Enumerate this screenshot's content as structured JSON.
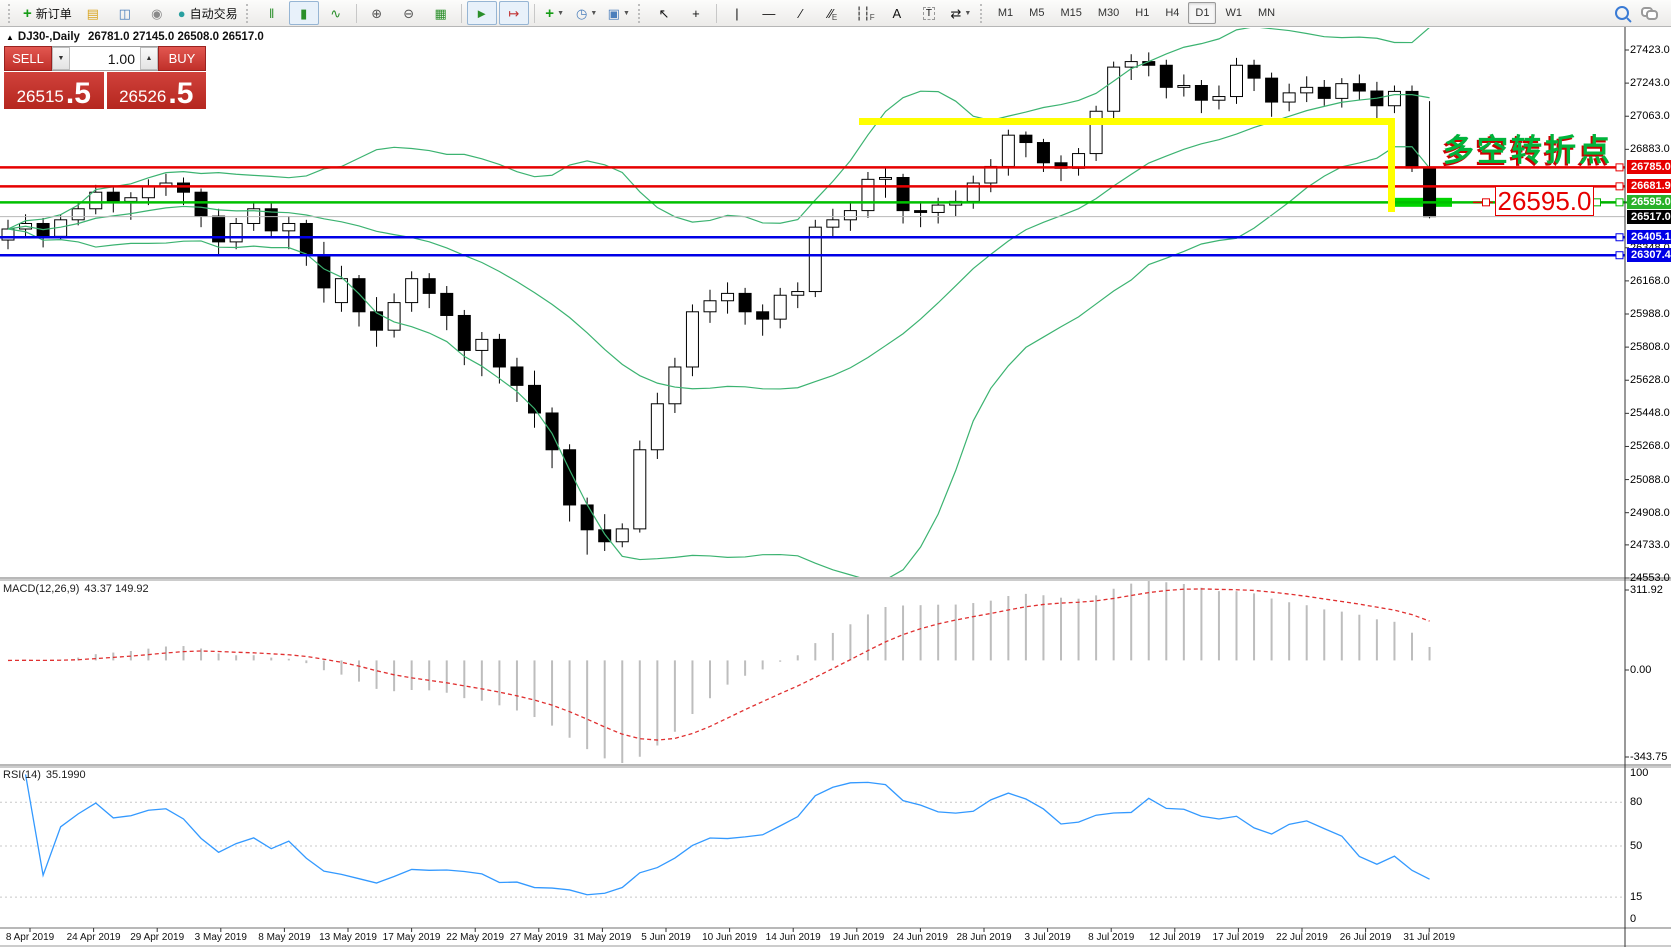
{
  "toolbar": {
    "groups": [
      {
        "grip": true,
        "items": [
          {
            "name": "new-order-button",
            "glyph": "+",
            "color": "#169c16",
            "bold": true,
            "label": "新订单"
          },
          {
            "name": "market-watch-button",
            "glyph": "▤",
            "color": "#d9a520"
          },
          {
            "name": "metaeditor-button",
            "glyph": "◫",
            "color": "#4a7ebb"
          },
          {
            "name": "signals-button",
            "glyph": "◉",
            "color": "#8a8a8a"
          },
          {
            "name": "auto-trading-button",
            "glyph": "●",
            "color": "#2aa0a0",
            "label": "自动交易"
          }
        ]
      },
      {
        "grip": true,
        "items": [
          {
            "name": "bar-chart-button",
            "glyph": "‖",
            "color": "#2a8f2a"
          },
          {
            "name": "candlestick-chart-button",
            "glyph": "▮",
            "color": "#2a8f2a",
            "active": true
          },
          {
            "name": "line-chart-button",
            "glyph": "∿",
            "color": "#2a8f2a"
          }
        ]
      },
      {
        "sep": true,
        "items": [
          {
            "name": "zoom-in-button",
            "glyph": "⊕",
            "color": "#555"
          },
          {
            "name": "zoom-out-button",
            "glyph": "⊖",
            "color": "#555"
          },
          {
            "name": "tile-windows-button",
            "glyph": "▦",
            "color": "#2a8f2a"
          }
        ]
      },
      {
        "sep": true,
        "items": [
          {
            "name": "auto-scroll-button",
            "glyph": "►",
            "color": "#2a8f2a",
            "active": true
          },
          {
            "name": "chart-shift-button",
            "glyph": "↦",
            "color": "#c03030",
            "active": true
          }
        ]
      },
      {
        "sep": true,
        "items": [
          {
            "name": "indicators-button",
            "glyph": "+",
            "color": "#169c16",
            "bold": true,
            "caret": true
          },
          {
            "name": "periods-button",
            "glyph": "◷",
            "color": "#4a7ebb",
            "caret": true
          },
          {
            "name": "templates-button",
            "glyph": "▣",
            "color": "#4a7ebb",
            "caret": true
          }
        ]
      },
      {
        "grip": true,
        "items": [
          {
            "name": "cursor-button",
            "glyph": "↖",
            "color": "#111"
          },
          {
            "name": "crosshair-button",
            "glyph": "+",
            "color": "#111"
          }
        ]
      },
      {
        "sep": true,
        "items": [
          {
            "name": "vertical-line-button",
            "glyph": "|",
            "color": "#111"
          },
          {
            "name": "horizontal-line-button",
            "glyph": "—",
            "color": "#111"
          },
          {
            "name": "trendline-button",
            "glyph": "∕",
            "color": "#111"
          },
          {
            "name": "equidistant-channel-button",
            "glyph": "∕∕",
            "sub": "E",
            "color": "#111"
          },
          {
            "name": "fibonacci-button",
            "glyph": "┆┆",
            "sub": "F",
            "color": "#111"
          },
          {
            "name": "text-button",
            "glyph": "A",
            "color": "#111"
          },
          {
            "name": "text-label-button",
            "glyph": "T",
            "color": "#111",
            "boxed": true
          },
          {
            "name": "arrows-button",
            "glyph": "⇄",
            "color": "#111",
            "caret": true
          }
        ]
      },
      {
        "grip": true,
        "timeframes": true
      }
    ],
    "timeframes": [
      {
        "label": "M1"
      },
      {
        "label": "M5"
      },
      {
        "label": "M15"
      },
      {
        "label": "M30"
      },
      {
        "label": "H1"
      },
      {
        "label": "H4"
      },
      {
        "label": "D1",
        "active": true
      },
      {
        "label": "W1"
      },
      {
        "label": "MN"
      }
    ],
    "right_icons": [
      {
        "name": "search-icon"
      },
      {
        "name": "chat-icon"
      }
    ]
  },
  "chart": {
    "title": {
      "collapse_glyph": "▲",
      "symbol_period": "DJ30-,Daily",
      "ohlc": "26781.0 27145.0 26508.0 26517.0"
    },
    "trade_panel": {
      "sell_label": "SELL",
      "buy_label": "BUY",
      "volume": "1.00",
      "dec_glyph": "▼",
      "inc_glyph": "▲",
      "sell_price_main": "26515",
      "sell_price_frac": ".5",
      "buy_price_main": "26526",
      "buy_price_frac": ".5"
    },
    "annotation": {
      "text": "多空转折点",
      "color": "#00b43c",
      "outline": "#cc0000"
    },
    "price_callout": {
      "text": "26595.0",
      "color": "#e60000"
    },
    "macd_label": {
      "name": "MACD(12,26,9)",
      "values": "43.37 149.92"
    },
    "rsi_label": {
      "name": "RSI(14)",
      "value": "35.1990"
    }
  },
  "chart_data": {
    "type": "candlestick",
    "symbol": "DJ30-",
    "timeframe": "Daily",
    "last_candle": {
      "open": 26781.0,
      "high": 27145.0,
      "low": 26508.0,
      "close": 26517.0
    },
    "y_axis_ticks": [
      "27423.0",
      "27243.0",
      "27063.0",
      "26883.0",
      "26348.0",
      "26168.0",
      "25988.0",
      "25808.0",
      "25628.0",
      "25448.0",
      "25268.0",
      "25088.0",
      "24908.0",
      "24733.0",
      "24553.0"
    ],
    "x_axis_dates": [
      "8 Apr 2019",
      "24 Apr 2019",
      "29 Apr 2019",
      "3 May 2019",
      "8 May 2019",
      "13 May 2019",
      "17 May 2019",
      "22 May 2019",
      "27 May 2019",
      "31 May 2019",
      "5 Jun 2019",
      "10 Jun 2019",
      "14 Jun 2019",
      "19 Jun 2019",
      "24 Jun 2019",
      "28 Jun 2019",
      "3 Jul 2019",
      "8 Jul 2019",
      "12 Jul 2019",
      "17 Jul 2019",
      "22 Jul 2019",
      "26 Jul 2019",
      "31 Jul 2019"
    ],
    "price_levels": [
      {
        "label": "26785.0",
        "value": 26785.0,
        "chip": "#e60000",
        "line": "#e60000",
        "kind": "resistance-line"
      },
      {
        "label": "26681.9",
        "value": 26681.9,
        "chip": "#e60000",
        "line": "#e60000",
        "kind": "resistance-line"
      },
      {
        "label": "26595.0",
        "value": 26595.0,
        "chip": "#29b129",
        "line": "#00c000",
        "kind": "support-line"
      },
      {
        "label": "26517.0",
        "value": 26517.0,
        "chip": "#000000",
        "line": "#b8b8b8",
        "kind": "current-price"
      },
      {
        "label": "26405.1",
        "value": 26405.1,
        "chip": "#0000e6",
        "line": "#0000e6",
        "kind": "support-line"
      },
      {
        "label": "26307.4",
        "value": 26307.4,
        "chip": "#0000e6",
        "line": "#0000e6",
        "kind": "support-line"
      }
    ],
    "candles": [
      [
        26390,
        26500,
        26340,
        26450
      ],
      [
        26450,
        26530,
        26410,
        26480
      ],
      [
        26480,
        26510,
        26350,
        26410
      ],
      [
        26410,
        26530,
        26390,
        26500
      ],
      [
        26500,
        26600,
        26470,
        26560
      ],
      [
        26560,
        26690,
        26530,
        26650
      ],
      [
        26650,
        26680,
        26540,
        26600
      ],
      [
        26600,
        26650,
        26500,
        26620
      ],
      [
        26620,
        26720,
        26580,
        26680
      ],
      [
        26680,
        26750,
        26630,
        26700
      ],
      [
        26700,
        26730,
        26580,
        26650
      ],
      [
        26650,
        26670,
        26460,
        26520
      ],
      [
        26520,
        26560,
        26310,
        26380
      ],
      [
        26380,
        26510,
        26340,
        26480
      ],
      [
        26480,
        26600,
        26440,
        26560
      ],
      [
        26560,
        26590,
        26400,
        26440
      ],
      [
        26440,
        26520,
        26340,
        26480
      ],
      [
        26480,
        26500,
        26250,
        26310
      ],
      [
        26310,
        26380,
        26050,
        26130
      ],
      [
        26050,
        26250,
        26000,
        26180
      ],
      [
        26180,
        26200,
        25920,
        26000
      ],
      [
        26000,
        26080,
        25810,
        25900
      ],
      [
        25900,
        26100,
        25860,
        26050
      ],
      [
        26050,
        26220,
        26000,
        26180
      ],
      [
        26180,
        26210,
        26020,
        26100
      ],
      [
        26100,
        26140,
        25900,
        25980
      ],
      [
        25980,
        26010,
        25710,
        25790
      ],
      [
        25790,
        25890,
        25650,
        25850
      ],
      [
        25850,
        25880,
        25610,
        25700
      ],
      [
        25700,
        25750,
        25510,
        25600
      ],
      [
        25600,
        25680,
        25370,
        25450
      ],
      [
        25450,
        25480,
        25150,
        25250
      ],
      [
        25250,
        25280,
        24860,
        24950
      ],
      [
        24950,
        24990,
        24680,
        24815
      ],
      [
        24815,
        24900,
        24700,
        24750
      ],
      [
        24750,
        24850,
        24720,
        24820
      ],
      [
        24820,
        25300,
        24800,
        25250
      ],
      [
        25250,
        25560,
        25200,
        25500
      ],
      [
        25500,
        25750,
        25450,
        25700
      ],
      [
        25700,
        26040,
        25650,
        26000
      ],
      [
        26000,
        26120,
        25940,
        26060
      ],
      [
        26060,
        26160,
        25990,
        26100
      ],
      [
        26100,
        26130,
        25930,
        26000
      ],
      [
        26000,
        26040,
        25870,
        25960
      ],
      [
        25960,
        26130,
        25910,
        26090
      ],
      [
        26090,
        26160,
        26020,
        26110
      ],
      [
        26110,
        26500,
        26080,
        26460
      ],
      [
        26460,
        26560,
        26400,
        26500
      ],
      [
        26500,
        26600,
        26440,
        26550
      ],
      [
        26550,
        26760,
        26510,
        26720
      ],
      [
        26720,
        26780,
        26620,
        26730
      ],
      [
        26730,
        26750,
        26480,
        26550
      ],
      [
        26550,
        26600,
        26460,
        26540
      ],
      [
        26540,
        26620,
        26480,
        26580
      ],
      [
        26580,
        26660,
        26520,
        26600
      ],
      [
        26600,
        26740,
        26560,
        26700
      ],
      [
        26700,
        26830,
        26650,
        26790
      ],
      [
        26790,
        26990,
        26740,
        26960
      ],
      [
        26960,
        26980,
        26840,
        26920
      ],
      [
        26920,
        26940,
        26760,
        26810
      ],
      [
        26810,
        26850,
        26710,
        26780
      ],
      [
        26780,
        26890,
        26740,
        26860
      ],
      [
        26860,
        27120,
        26820,
        27090
      ],
      [
        27090,
        27360,
        27050,
        27330
      ],
      [
        27330,
        27400,
        27260,
        27360
      ],
      [
        27360,
        27410,
        27280,
        27340
      ],
      [
        27340,
        27370,
        27160,
        27220
      ],
      [
        27220,
        27290,
        27170,
        27230
      ],
      [
        27230,
        27260,
        27080,
        27150
      ],
      [
        27150,
        27230,
        27100,
        27170
      ],
      [
        27170,
        27380,
        27130,
        27340
      ],
      [
        27340,
        27370,
        27200,
        27270
      ],
      [
        27270,
        27300,
        27060,
        27140
      ],
      [
        27140,
        27240,
        27090,
        27190
      ],
      [
        27190,
        27280,
        27140,
        27220
      ],
      [
        27220,
        27260,
        27120,
        27160
      ],
      [
        27160,
        27270,
        27110,
        27240
      ],
      [
        27240,
        27290,
        27150,
        27200
      ],
      [
        27200,
        27250,
        27050,
        27120
      ],
      [
        27120,
        27230,
        27080,
        27198
      ],
      [
        27198,
        27230,
        26760,
        26781
      ],
      [
        26781,
        27145,
        26508,
        26517
      ]
    ],
    "indicators": {
      "bollinger": {
        "period": 20,
        "deviation": 2,
        "color": "#3CB371"
      },
      "macd": {
        "fast": 12,
        "slow": 26,
        "signal": 9,
        "main_value": 43.37,
        "signal_value": 149.92,
        "histogram_color": "#bdbdbd",
        "signal_color": "#e03030",
        "axis_labels": [
          "311.92",
          "0.00",
          "-343.75"
        ]
      },
      "rsi": {
        "period": 14,
        "value": 35.199,
        "color": "#3399ff",
        "levels": [
          80,
          50,
          15
        ],
        "axis_labels": [
          "100",
          "80",
          "50",
          "15",
          "0"
        ]
      }
    },
    "drawings": {
      "yellow_resistance_line": {
        "price": 27050,
        "color": "#ffff00"
      },
      "yellow_vertical_line": {
        "color": "#ffff00"
      },
      "green_support_bar": {
        "price": 26595.0,
        "color": "#00d400"
      },
      "annotation_text": "多空转折点",
      "price_callout": "26595.0"
    }
  }
}
